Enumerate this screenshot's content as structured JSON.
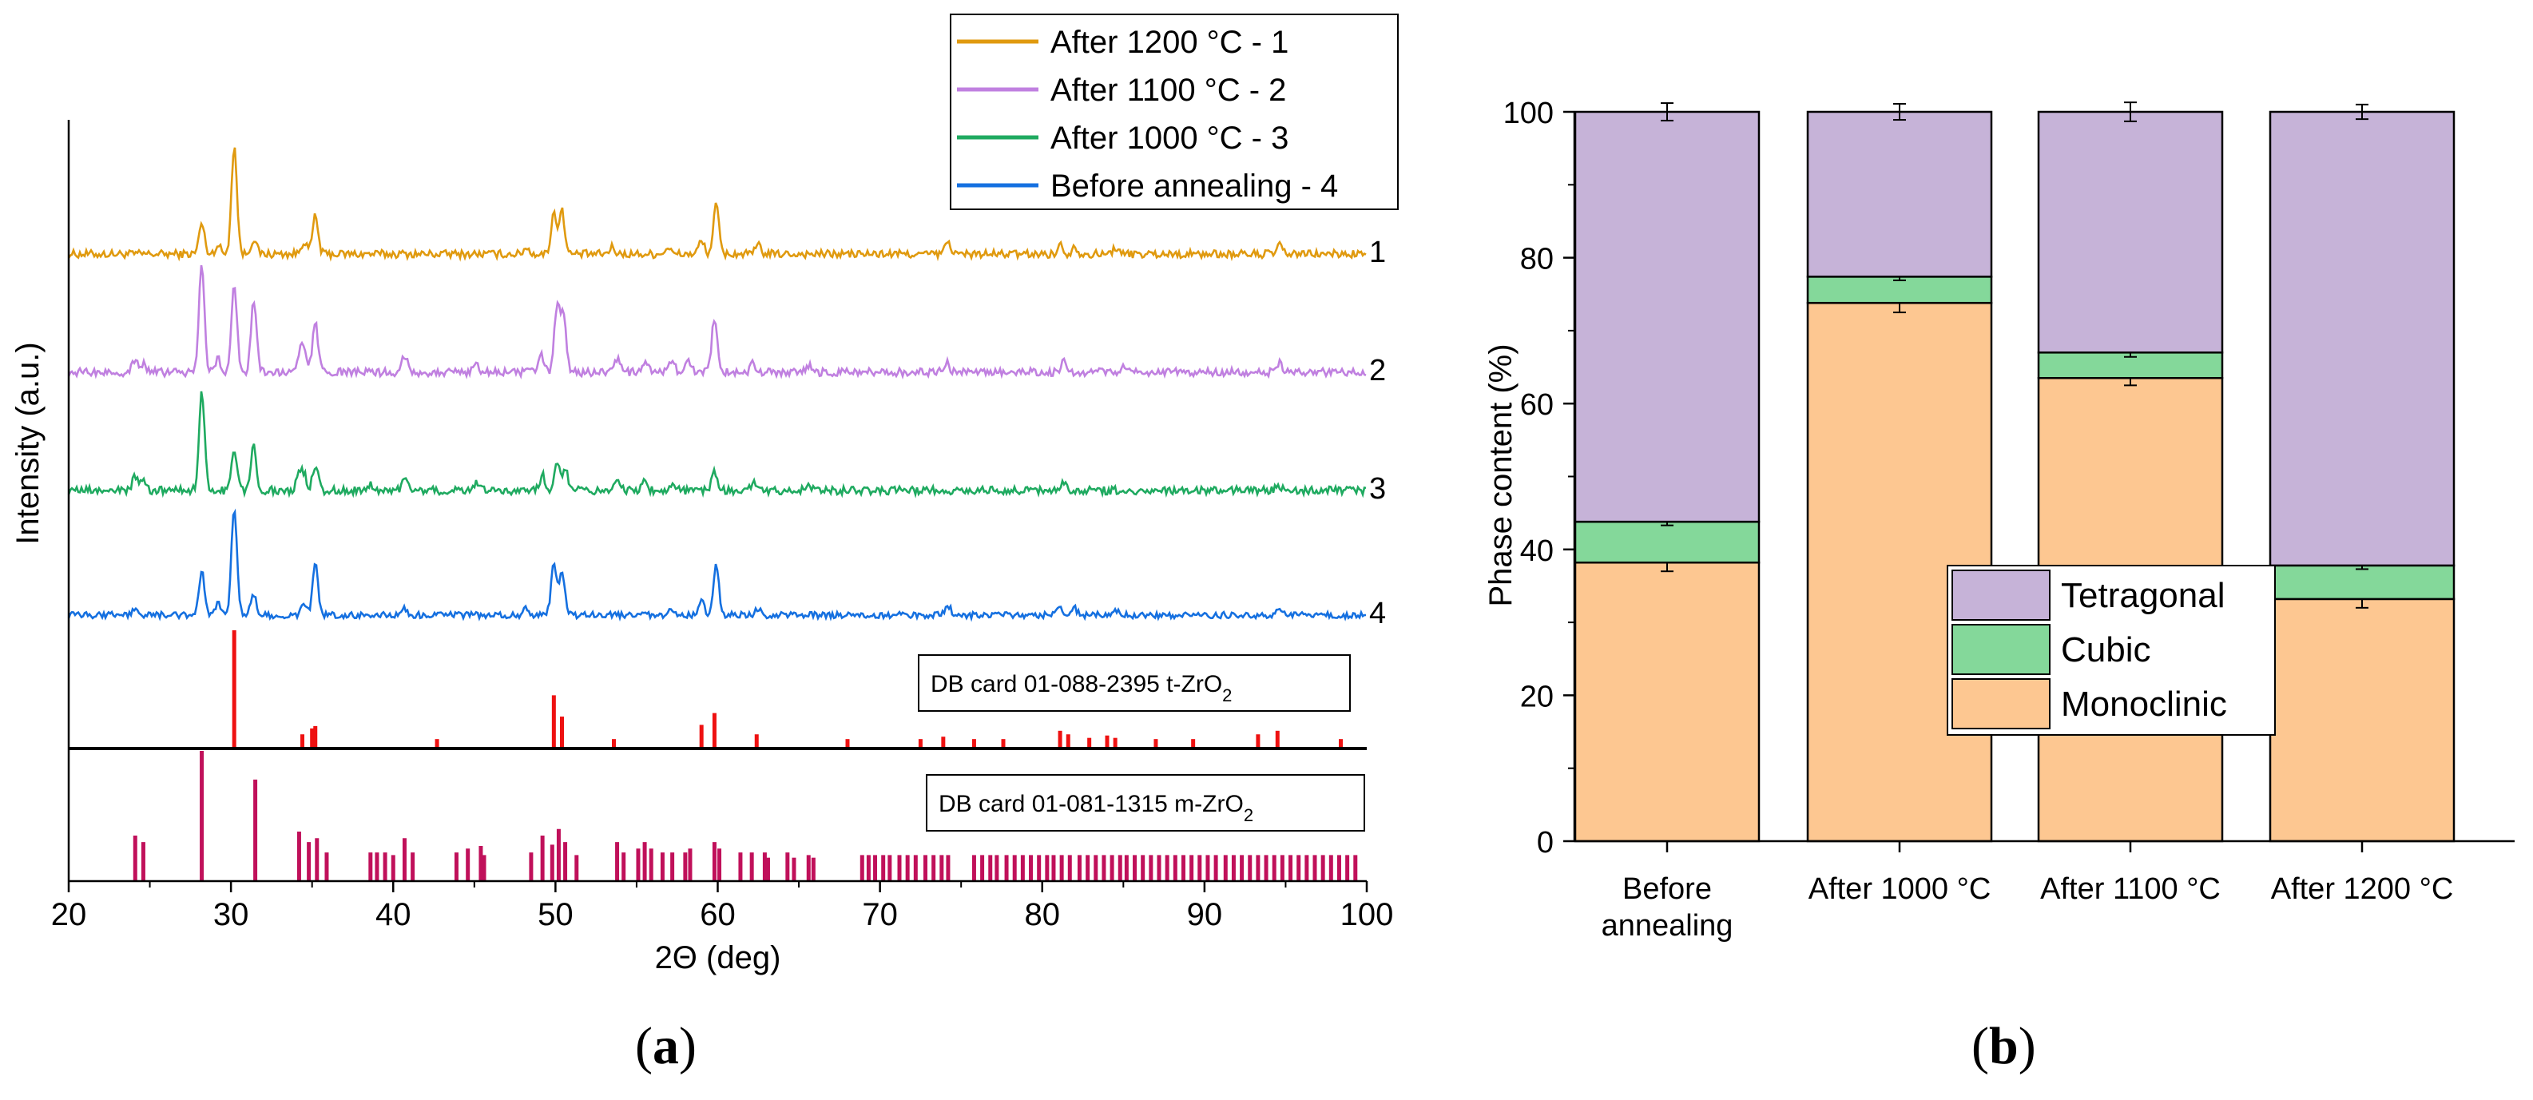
{
  "colors": {
    "s1": "#e09a0f",
    "s2": "#c080e0",
    "s3": "#1faa60",
    "s4": "#1570e0",
    "tcard": "#ee1111",
    "mcard": "#c0105a",
    "tetragonal": "#c6b3d8",
    "cubic": "#84d89a",
    "monoclinic": "#fdc791"
  },
  "panel_labels": {
    "a": "a",
    "b": "b"
  },
  "chart_data": [
    {
      "type": "line",
      "panel": "a",
      "xlabel": "2Θ (deg)",
      "ylabel": "Intensity (a.u.)",
      "xlim": [
        20,
        100
      ],
      "xticks": [
        "20",
        "30",
        "40",
        "50",
        "60",
        "70",
        "80",
        "90",
        "100"
      ],
      "legend_position": "top-right",
      "series": [
        {
          "name": "After 1200 °C - 1",
          "label": "1",
          "color_key": "s1",
          "offset": 0,
          "peaks": [
            [
              28.2,
              0.28
            ],
            [
              29.2,
              0.08
            ],
            [
              30.2,
              1.0
            ],
            [
              31.4,
              0.14
            ],
            [
              34.5,
              0.12
            ],
            [
              35.2,
              0.35
            ],
            [
              48.2,
              0.06
            ],
            [
              49.9,
              0.38
            ],
            [
              50.4,
              0.4
            ],
            [
              53.5,
              0.06
            ],
            [
              56.9,
              0.06
            ],
            [
              59.0,
              0.12
            ],
            [
              59.9,
              0.45
            ],
            [
              62.5,
              0.08
            ],
            [
              74.2,
              0.12
            ],
            [
              81.1,
              0.08
            ],
            [
              82.0,
              0.07
            ],
            [
              84.5,
              0.06
            ],
            [
              94.6,
              0.08
            ]
          ]
        },
        {
          "name": "After 1100 °C - 2",
          "label": "2",
          "color_key": "s2",
          "offset": 1,
          "peaks": [
            [
              24.1,
              0.12
            ],
            [
              24.6,
              0.08
            ],
            [
              28.2,
              1.0
            ],
            [
              29.2,
              0.12
            ],
            [
              30.2,
              0.8
            ],
            [
              31.4,
              0.65
            ],
            [
              34.2,
              0.15
            ],
            [
              34.5,
              0.2
            ],
            [
              35.2,
              0.45
            ],
            [
              40.7,
              0.16
            ],
            [
              45.1,
              0.08
            ],
            [
              49.1,
              0.18
            ],
            [
              50.1,
              0.6
            ],
            [
              50.5,
              0.5
            ],
            [
              53.8,
              0.12
            ],
            [
              55.5,
              0.1
            ],
            [
              57.2,
              0.1
            ],
            [
              58.2,
              0.1
            ],
            [
              59.8,
              0.5
            ],
            [
              62.2,
              0.08
            ],
            [
              65.6,
              0.06
            ],
            [
              74.1,
              0.1
            ],
            [
              81.3,
              0.1
            ],
            [
              85.0,
              0.06
            ],
            [
              94.6,
              0.08
            ]
          ]
        },
        {
          "name": "After 1000 °C - 3",
          "label": "3",
          "color_key": "s3",
          "offset": 2,
          "peaks": [
            [
              24.1,
              0.15
            ],
            [
              24.6,
              0.08
            ],
            [
              28.2,
              1.0
            ],
            [
              30.2,
              0.4
            ],
            [
              31.4,
              0.45
            ],
            [
              34.2,
              0.15
            ],
            [
              34.5,
              0.15
            ],
            [
              35.2,
              0.25
            ],
            [
              38.6,
              0.06
            ],
            [
              40.7,
              0.12
            ],
            [
              45.1,
              0.08
            ],
            [
              49.2,
              0.15
            ],
            [
              50.1,
              0.3
            ],
            [
              50.6,
              0.22
            ],
            [
              53.8,
              0.12
            ],
            [
              55.5,
              0.08
            ],
            [
              57.2,
              0.08
            ],
            [
              59.8,
              0.2
            ],
            [
              62.2,
              0.07
            ],
            [
              65.6,
              0.05
            ],
            [
              81.3,
              0.06
            ],
            [
              94.6,
              0.05
            ]
          ]
        },
        {
          "name": "Before annealing - 4",
          "label": "4",
          "color_key": "s4",
          "offset": 3,
          "peaks": [
            [
              24.1,
              0.05
            ],
            [
              28.2,
              0.4
            ],
            [
              29.2,
              0.1
            ],
            [
              30.2,
              1.0
            ],
            [
              31.4,
              0.2
            ],
            [
              34.5,
              0.1
            ],
            [
              35.2,
              0.47
            ],
            [
              40.7,
              0.06
            ],
            [
              48.2,
              0.06
            ],
            [
              49.9,
              0.46
            ],
            [
              50.4,
              0.42
            ],
            [
              57.2,
              0.05
            ],
            [
              59.0,
              0.12
            ],
            [
              59.9,
              0.47
            ],
            [
              62.5,
              0.06
            ],
            [
              74.2,
              0.08
            ],
            [
              81.1,
              0.07
            ],
            [
              82.0,
              0.06
            ],
            [
              84.5,
              0.06
            ],
            [
              94.6,
              0.08
            ]
          ]
        }
      ],
      "reference_cards": [
        {
          "label": "DB card 01-088-2395  t-ZrO",
          "subscript": "2",
          "color_key": "tcard",
          "sticks": [
            [
              30.2,
              1.0
            ],
            [
              34.4,
              0.12
            ],
            [
              35.0,
              0.17
            ],
            [
              35.2,
              0.19
            ],
            [
              42.7,
              0.08
            ],
            [
              49.9,
              0.45
            ],
            [
              50.4,
              0.27
            ],
            [
              53.6,
              0.08
            ],
            [
              59.0,
              0.2
            ],
            [
              59.8,
              0.3
            ],
            [
              62.4,
              0.12
            ],
            [
              68.0,
              0.08
            ],
            [
              72.5,
              0.08
            ],
            [
              73.9,
              0.1
            ],
            [
              75.8,
              0.08
            ],
            [
              77.6,
              0.08
            ],
            [
              81.1,
              0.15
            ],
            [
              81.6,
              0.12
            ],
            [
              82.9,
              0.09
            ],
            [
              84.0,
              0.11
            ],
            [
              84.5,
              0.09
            ],
            [
              87.0,
              0.08
            ],
            [
              89.3,
              0.08
            ],
            [
              93.3,
              0.12
            ],
            [
              94.5,
              0.15
            ],
            [
              98.4,
              0.08
            ]
          ]
        },
        {
          "label": "DB card 01-081-1315  m-ZrO",
          "subscript": "2",
          "color_key": "mcard",
          "sticks": [
            [
              24.1,
              0.35
            ],
            [
              24.6,
              0.3
            ],
            [
              28.2,
              1.0
            ],
            [
              31.5,
              0.78
            ],
            [
              34.2,
              0.38
            ],
            [
              34.8,
              0.3
            ],
            [
              35.3,
              0.33
            ],
            [
              35.9,
              0.22
            ],
            [
              38.6,
              0.22
            ],
            [
              39.0,
              0.22
            ],
            [
              39.5,
              0.22
            ],
            [
              40.0,
              0.2
            ],
            [
              40.7,
              0.33
            ],
            [
              41.2,
              0.22
            ],
            [
              43.9,
              0.22
            ],
            [
              44.6,
              0.25
            ],
            [
              45.4,
              0.27
            ],
            [
              45.6,
              0.2
            ],
            [
              48.5,
              0.22
            ],
            [
              49.2,
              0.35
            ],
            [
              49.8,
              0.28
            ],
            [
              50.2,
              0.4
            ],
            [
              50.6,
              0.3
            ],
            [
              51.3,
              0.2
            ],
            [
              53.8,
              0.3
            ],
            [
              54.2,
              0.22
            ],
            [
              55.1,
              0.25
            ],
            [
              55.5,
              0.3
            ],
            [
              55.9,
              0.25
            ],
            [
              56.6,
              0.22
            ],
            [
              57.2,
              0.22
            ],
            [
              58.0,
              0.22
            ],
            [
              58.3,
              0.25
            ],
            [
              59.8,
              0.3
            ],
            [
              60.1,
              0.25
            ],
            [
              61.4,
              0.22
            ],
            [
              62.1,
              0.22
            ],
            [
              62.9,
              0.22
            ],
            [
              63.1,
              0.18
            ],
            [
              64.3,
              0.22
            ],
            [
              64.7,
              0.18
            ],
            [
              65.6,
              0.2
            ],
            [
              65.9,
              0.18
            ],
            [
              68.9,
              0.2
            ],
            [
              69.3,
              0.2
            ],
            [
              69.7,
              0.2
            ],
            [
              70.2,
              0.2
            ],
            [
              70.6,
              0.2
            ],
            [
              71.2,
              0.2
            ],
            [
              71.7,
              0.2
            ],
            [
              72.2,
              0.2
            ],
            [
              72.8,
              0.2
            ],
            [
              73.3,
              0.2
            ],
            [
              73.8,
              0.2
            ],
            [
              74.2,
              0.2
            ],
            [
              75.8,
              0.2
            ],
            [
              76.3,
              0.2
            ],
            [
              76.8,
              0.2
            ],
            [
              77.2,
              0.2
            ],
            [
              77.8,
              0.2
            ],
            [
              78.3,
              0.2
            ],
            [
              78.8,
              0.2
            ],
            [
              79.3,
              0.2
            ],
            [
              79.8,
              0.2
            ],
            [
              80.3,
              0.2
            ],
            [
              80.7,
              0.2
            ],
            [
              81.2,
              0.2
            ],
            [
              81.7,
              0.2
            ],
            [
              82.3,
              0.2
            ],
            [
              82.8,
              0.2
            ],
            [
              83.3,
              0.2
            ],
            [
              83.8,
              0.2
            ],
            [
              84.3,
              0.2
            ],
            [
              84.8,
              0.2
            ],
            [
              85.2,
              0.2
            ],
            [
              85.7,
              0.2
            ],
            [
              86.2,
              0.2
            ],
            [
              86.7,
              0.2
            ],
            [
              87.2,
              0.2
            ],
            [
              87.7,
              0.2
            ],
            [
              88.2,
              0.2
            ],
            [
              88.7,
              0.2
            ],
            [
              89.2,
              0.2
            ],
            [
              89.7,
              0.2
            ],
            [
              90.2,
              0.2
            ],
            [
              90.7,
              0.2
            ],
            [
              91.3,
              0.2
            ],
            [
              91.8,
              0.2
            ],
            [
              92.3,
              0.2
            ],
            [
              92.8,
              0.2
            ],
            [
              93.3,
              0.2
            ],
            [
              93.8,
              0.2
            ],
            [
              94.3,
              0.2
            ],
            [
              94.8,
              0.2
            ],
            [
              95.3,
              0.2
            ],
            [
              95.8,
              0.2
            ],
            [
              96.3,
              0.2
            ],
            [
              96.8,
              0.2
            ],
            [
              97.3,
              0.2
            ],
            [
              97.8,
              0.2
            ],
            [
              98.3,
              0.2
            ],
            [
              98.8,
              0.2
            ],
            [
              99.3,
              0.2
            ]
          ]
        }
      ]
    },
    {
      "type": "bar",
      "stacked": true,
      "panel": "b",
      "ylabel": "Phase content (%)",
      "ylim": [
        0,
        100
      ],
      "yticks": [
        "0",
        "20",
        "40",
        "60",
        "80",
        "100"
      ],
      "categories": [
        "Before annealing",
        "After 1000 °C",
        "After 1100 °C",
        "After 1200 °C"
      ],
      "category_lines": [
        [
          "Before",
          "annealing"
        ],
        [
          "After 1000 °C"
        ],
        [
          "After 1100 °C"
        ],
        [
          "After 1200 °C"
        ]
      ],
      "legend_position": "center",
      "series": [
        {
          "name": "Monoclinic",
          "color_key": "monoclinic",
          "values": [
            38.2,
            73.8,
            63.5,
            33.2
          ],
          "errors": [
            1.2,
            1.3,
            1.0,
            1.2
          ]
        },
        {
          "name": "Cubic",
          "color_key": "cubic",
          "values": [
            5.6,
            3.6,
            3.5,
            4.6
          ],
          "errors": [
            0.5,
            0.5,
            0.6,
            0.5
          ]
        },
        {
          "name": "Tetragonal",
          "color_key": "tetragonal",
          "values": [
            56.2,
            22.6,
            33.0,
            62.2
          ],
          "errors": [
            1.2,
            1.1,
            1.3,
            1.0
          ]
        }
      ],
      "legend_order": [
        "Tetragonal",
        "Cubic",
        "Monoclinic"
      ]
    }
  ]
}
